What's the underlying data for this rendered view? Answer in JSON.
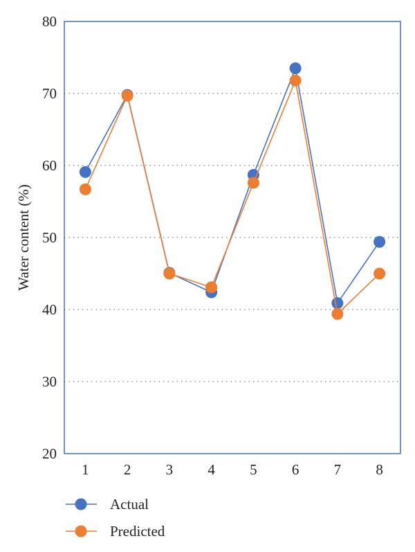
{
  "chart_data": {
    "type": "line",
    "title": "",
    "xlabel": "",
    "ylabel": "Water content (%)",
    "categories": [
      "1",
      "2",
      "3",
      "4",
      "5",
      "6",
      "7",
      "8"
    ],
    "ylim": [
      20,
      80
    ],
    "yticks": [
      20,
      30,
      40,
      50,
      60,
      70,
      80
    ],
    "grid": "horizontal dotted",
    "legend_position": "bottom-left",
    "series": [
      {
        "name": "Actual",
        "color": "#4472C4",
        "values": [
          59.1,
          69.8,
          45.1,
          42.4,
          58.7,
          73.5,
          40.9,
          49.4
        ]
      },
      {
        "name": "Predicted",
        "color": "#ED7D31",
        "values": [
          56.7,
          69.7,
          45.0,
          43.1,
          57.6,
          71.8,
          39.4,
          45.0
        ]
      }
    ]
  }
}
